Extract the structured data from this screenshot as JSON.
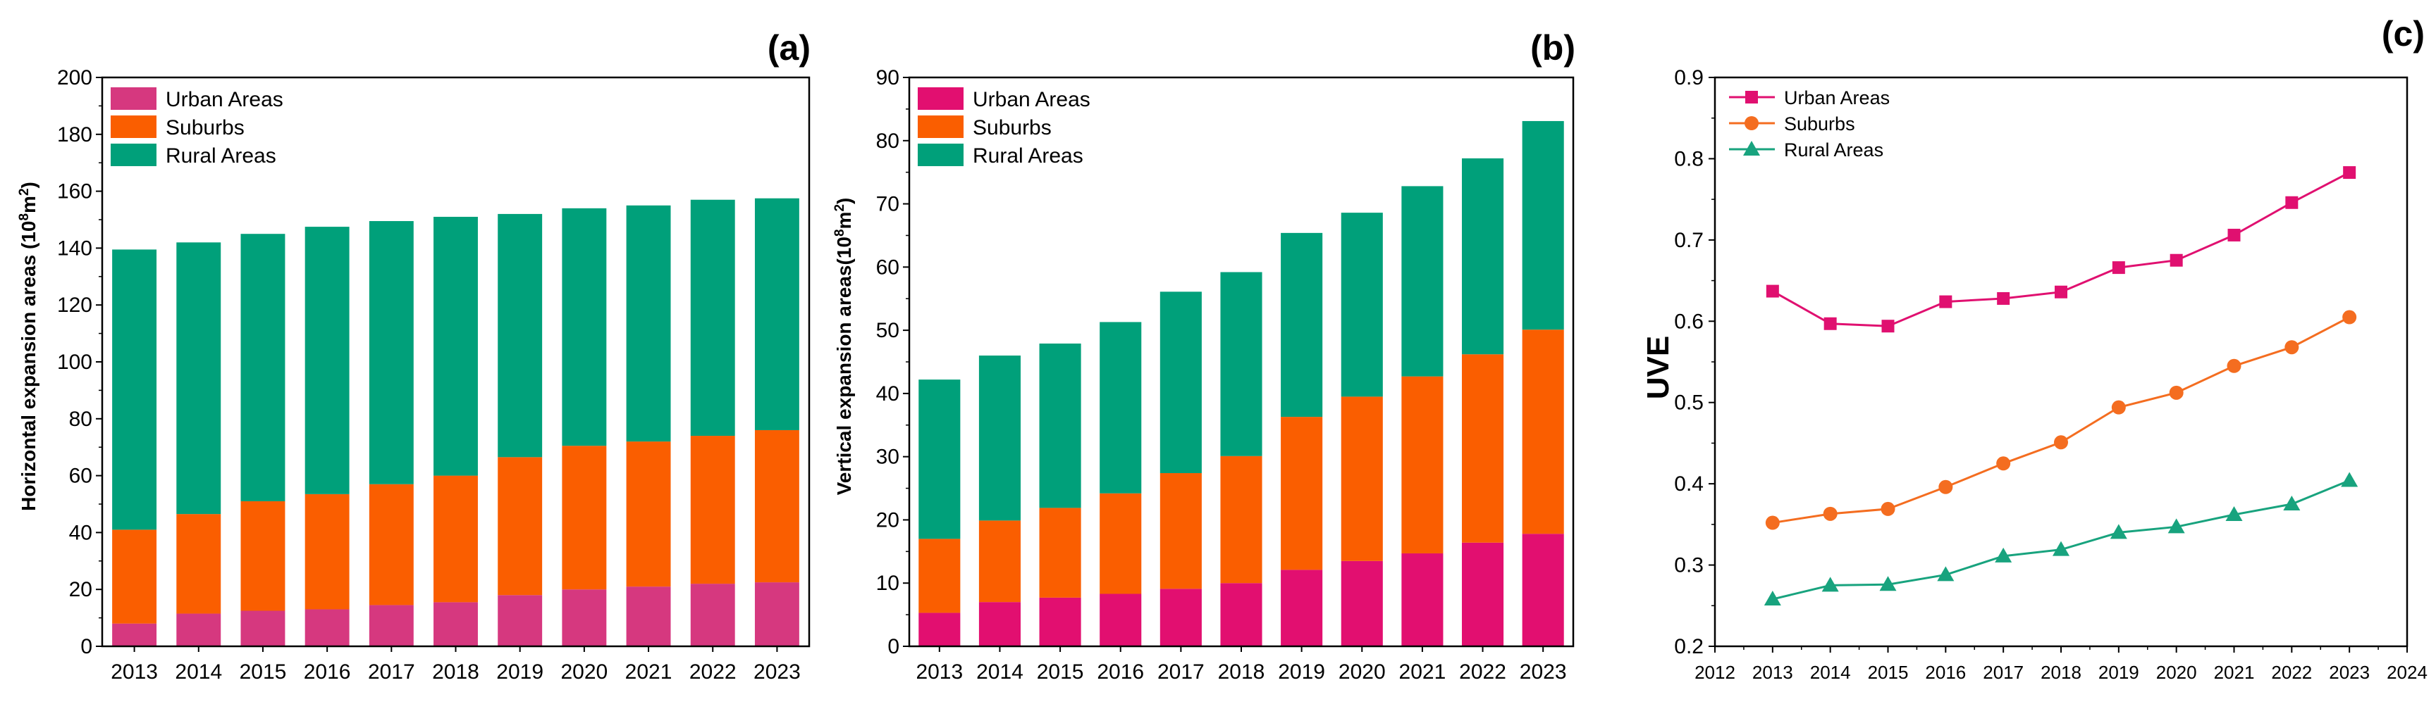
{
  "colors": {
    "urban_a": "#d6387f",
    "urban_b": "#e20f70",
    "suburbs": "#fa5e00",
    "rural": "#00a07a",
    "urban_line": "#e01070",
    "suburbs_line": "#f46d20",
    "rural_line": "#18a37e"
  },
  "chart_data": [
    {
      "panel": "(a)",
      "type": "bar",
      "stacked": true,
      "categories": [
        "2013",
        "2014",
        "2015",
        "2016",
        "2017",
        "2018",
        "2019",
        "2020",
        "2021",
        "2022",
        "2023"
      ],
      "ylabel": "Horizontal expansion areas (10",
      "ylabel_sup": "8",
      "ylabel_mid": "m",
      "ylabel_sup2": "2",
      "ylabel_end": ")",
      "ylim": [
        0,
        200
      ],
      "yticks": [
        "0",
        "20",
        "40",
        "60",
        "80",
        "100",
        "120",
        "140",
        "160",
        "180",
        "200"
      ],
      "legend_position": "top-left",
      "series": [
        {
          "name": "Urban Areas",
          "color_key": "urban_a",
          "values": [
            8,
            11.5,
            12.5,
            13,
            14.5,
            15.5,
            18,
            20,
            21,
            22,
            22.5
          ]
        },
        {
          "name": "Suburbs",
          "color_key": "suburbs",
          "values": [
            33,
            35,
            38.5,
            40.5,
            42.5,
            44.5,
            48.5,
            50.5,
            51,
            52,
            53.5
          ]
        },
        {
          "name": "Rural Areas",
          "color_key": "rural",
          "values": [
            98.5,
            95.5,
            94,
            94,
            92.5,
            91,
            85.5,
            83.5,
            83,
            83,
            81.5
          ]
        }
      ]
    },
    {
      "panel": "(b)",
      "type": "bar",
      "stacked": true,
      "categories": [
        "2013",
        "2014",
        "2015",
        "2016",
        "2017",
        "2018",
        "2019",
        "2020",
        "2021",
        "2022",
        "2023"
      ],
      "ylabel": "Vertical expansion areas(10",
      "ylabel_sup": "8",
      "ylabel_mid": "m",
      "ylabel_sup2": "2",
      "ylabel_end": ")",
      "ylim": [
        0,
        90
      ],
      "yticks": [
        "0",
        "10",
        "20",
        "30",
        "40",
        "50",
        "60",
        "70",
        "80",
        "90"
      ],
      "legend_position": "top-left",
      "series": [
        {
          "name": "Urban Areas",
          "color_key": "urban_b",
          "values": [
            5.3,
            7,
            7.7,
            8.3,
            9.1,
            10,
            12.1,
            13.5,
            14.7,
            16.4,
            17.8
          ]
        },
        {
          "name": "Suburbs",
          "color_key": "suburbs",
          "values": [
            11.7,
            12.9,
            14.2,
            15.9,
            18.3,
            20.1,
            24.2,
            26,
            28,
            29.8,
            32.3
          ]
        },
        {
          "name": "Rural Areas",
          "color_key": "rural",
          "values": [
            25.2,
            26.1,
            26,
            27.1,
            28.7,
            29.1,
            29.1,
            29.1,
            30.1,
            31,
            33
          ]
        }
      ]
    },
    {
      "panel": "(c)",
      "type": "line",
      "x": [
        2013,
        2014,
        2015,
        2016,
        2017,
        2018,
        2019,
        2020,
        2021,
        2022,
        2023
      ],
      "xlim": [
        2012,
        2024
      ],
      "xticks": [
        "2012",
        "2013",
        "2014",
        "2015",
        "2016",
        "2017",
        "2018",
        "2019",
        "2020",
        "2021",
        "2022",
        "2023",
        "2024"
      ],
      "ylim": [
        0.2,
        0.9
      ],
      "yticks": [
        "0.2",
        "0.3",
        "0.4",
        "0.5",
        "0.6",
        "0.7",
        "0.8",
        "0.9"
      ],
      "ylabel": "UVE",
      "legend_position": "top-left",
      "series": [
        {
          "name": "Urban Areas",
          "marker": "square",
          "color_key": "urban_line",
          "values": [
            0.637,
            0.597,
            0.594,
            0.624,
            0.628,
            0.636,
            0.666,
            0.675,
            0.706,
            0.746,
            0.783
          ]
        },
        {
          "name": "Suburbs",
          "marker": "circle",
          "color_key": "suburbs_line",
          "values": [
            0.352,
            0.363,
            0.369,
            0.396,
            0.425,
            0.451,
            0.494,
            0.512,
            0.545,
            0.568,
            0.605
          ]
        },
        {
          "name": "Rural Areas",
          "marker": "triangle",
          "color_key": "rural_line",
          "values": [
            0.258,
            0.275,
            0.276,
            0.288,
            0.311,
            0.319,
            0.34,
            0.347,
            0.362,
            0.375,
            0.404
          ]
        }
      ]
    }
  ]
}
